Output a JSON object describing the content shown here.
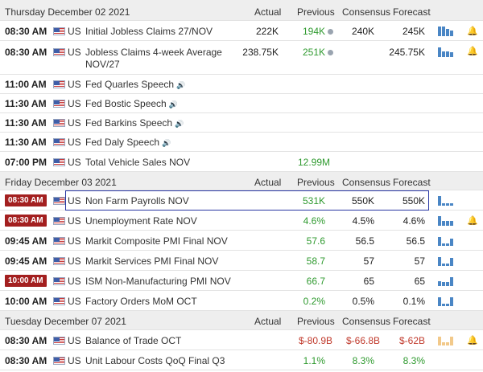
{
  "columns": {
    "actual": "Actual",
    "previous": "Previous",
    "consensus": "Consensus",
    "forecast": "Forecast"
  },
  "days": [
    {
      "label": "Thursday December 02 2021",
      "events": [
        {
          "time": "08:30 AM",
          "country": "US",
          "name": "Initial Jobless Claims 27/NOV",
          "actual": "222K",
          "previous": "194K",
          "previous_color": "green",
          "consensus": "240K",
          "forecast": "245K",
          "speech": false,
          "prev_dot": true,
          "bars": [
            1,
            1,
            0.8,
            0.6
          ],
          "bars_color": "blue"
        },
        {
          "time": "08:30 AM",
          "country": "US",
          "name": "Jobless Claims 4-week Average",
          "name_line2": "NOV/27",
          "actual": "238.75K",
          "previous": "251K",
          "previous_color": "green",
          "consensus": "",
          "forecast": "245.75K",
          "speech": false,
          "prev_dot": true,
          "bars": [
            1,
            0.6,
            0.6,
            0.5
          ],
          "bars_color": "blue"
        },
        {
          "time": "11:00 AM",
          "country": "US",
          "name": "Fed Quarles Speech",
          "actual": "",
          "previous": "",
          "consensus": "",
          "forecast": "",
          "speech": true
        },
        {
          "time": "11:30 AM",
          "country": "US",
          "name": "Fed Bostic Speech",
          "actual": "",
          "previous": "",
          "consensus": "",
          "forecast": "",
          "speech": true
        },
        {
          "time": "11:30 AM",
          "country": "US",
          "name": "Fed Barkins Speech",
          "actual": "",
          "previous": "",
          "consensus": "",
          "forecast": "",
          "speech": true
        },
        {
          "time": "11:30 AM",
          "country": "US",
          "name": "Fed Daly Speech",
          "actual": "",
          "previous": "",
          "consensus": "",
          "forecast": "",
          "speech": true
        },
        {
          "time": "07:00 PM",
          "country": "US",
          "name": "Total Vehicle Sales NOV",
          "actual": "",
          "previous": "12.99M",
          "previous_color": "green",
          "consensus": "",
          "forecast": "",
          "speech": false
        }
      ]
    },
    {
      "label": "Friday December 03 2021",
      "events": [
        {
          "time": "08:30 AM",
          "badge": true,
          "country": "US",
          "name": "Non Farm Payrolls NOV",
          "actual": "",
          "previous": "531K",
          "previous_color": "green",
          "consensus": "550K",
          "forecast": "550K",
          "speech": false,
          "bars": [
            1,
            0.3,
            0.3,
            0.3
          ],
          "bars_color": "blue"
        },
        {
          "time": "08:30 AM",
          "badge": true,
          "country": "US",
          "name": "Unemployment Rate NOV",
          "actual": "",
          "previous": "4.6%",
          "previous_color": "green",
          "consensus": "4.5%",
          "forecast": "4.6%",
          "speech": false,
          "bars": [
            1,
            0.55,
            0.55,
            0.55
          ],
          "bars_color": "blue"
        },
        {
          "time": "09:45 AM",
          "country": "US",
          "name": "Markit Composite PMI Final NOV",
          "actual": "",
          "previous": "57.6",
          "previous_color": "green",
          "consensus": "56.5",
          "forecast": "56.5",
          "speech": false,
          "bars": [
            0.9,
            0.3,
            0.3,
            0.7
          ],
          "bars_color": "blue"
        },
        {
          "time": "09:45 AM",
          "country": "US",
          "name": "Markit Services PMI Final NOV",
          "actual": "",
          "previous": "58.7",
          "previous_color": "green",
          "consensus": "57",
          "forecast": "57",
          "speech": false,
          "bars": [
            0.9,
            0.3,
            0.3,
            0.8
          ],
          "bars_color": "blue"
        },
        {
          "time": "10:00 AM",
          "badge": true,
          "country": "US",
          "name": "ISM Non-Manufacturing PMI NOV",
          "actual": "",
          "previous": "66.7",
          "previous_color": "green",
          "consensus": "65",
          "forecast": "65",
          "speech": false,
          "bars": [
            0.5,
            0.4,
            0.4,
            0.9
          ],
          "bars_color": "blue"
        },
        {
          "time": "10:00 AM",
          "country": "US",
          "name": "Factory Orders MoM OCT",
          "actual": "",
          "previous": "0.2%",
          "previous_color": "green",
          "consensus": "0.5%",
          "forecast": "0.1%",
          "speech": false,
          "bars": [
            0.9,
            0.3,
            0.3,
            0.9
          ],
          "bars_color": "blue"
        }
      ]
    },
    {
      "label": "Tuesday December 07 2021",
      "events": [
        {
          "time": "08:30 AM",
          "country": "US",
          "name": "Balance of Trade OCT",
          "actual": "",
          "previous": "$-80.9B",
          "previous_color": "red",
          "consensus": "$-66.8B",
          "forecast": "$-62B",
          "speech": false,
          "bars": [
            0.9,
            0.4,
            0.4,
            0.9
          ],
          "bars_color": "orange"
        },
        {
          "time": "08:30 AM",
          "country": "US",
          "name": "Unit Labour Costs QoQ Final Q3",
          "actual": "",
          "previous": "1.1%",
          "previous_color": "green",
          "consensus": "8.3%",
          "forecast": "8.3%",
          "speech": false,
          "bars": [],
          "bars_color": "blue"
        }
      ]
    }
  ],
  "icons": {
    "flag": "us-flag-icon",
    "speech": "speaker-icon",
    "bell": "bell-icon",
    "chart": "mini-bar-chart-icon"
  },
  "colors": {
    "badge": "#a31f1f",
    "green": "#2f9a2f",
    "red": "#c0392b",
    "bar_blue": "#4a86c5",
    "bar_orange": "#f2c98a",
    "highlight": "#2836a3"
  }
}
